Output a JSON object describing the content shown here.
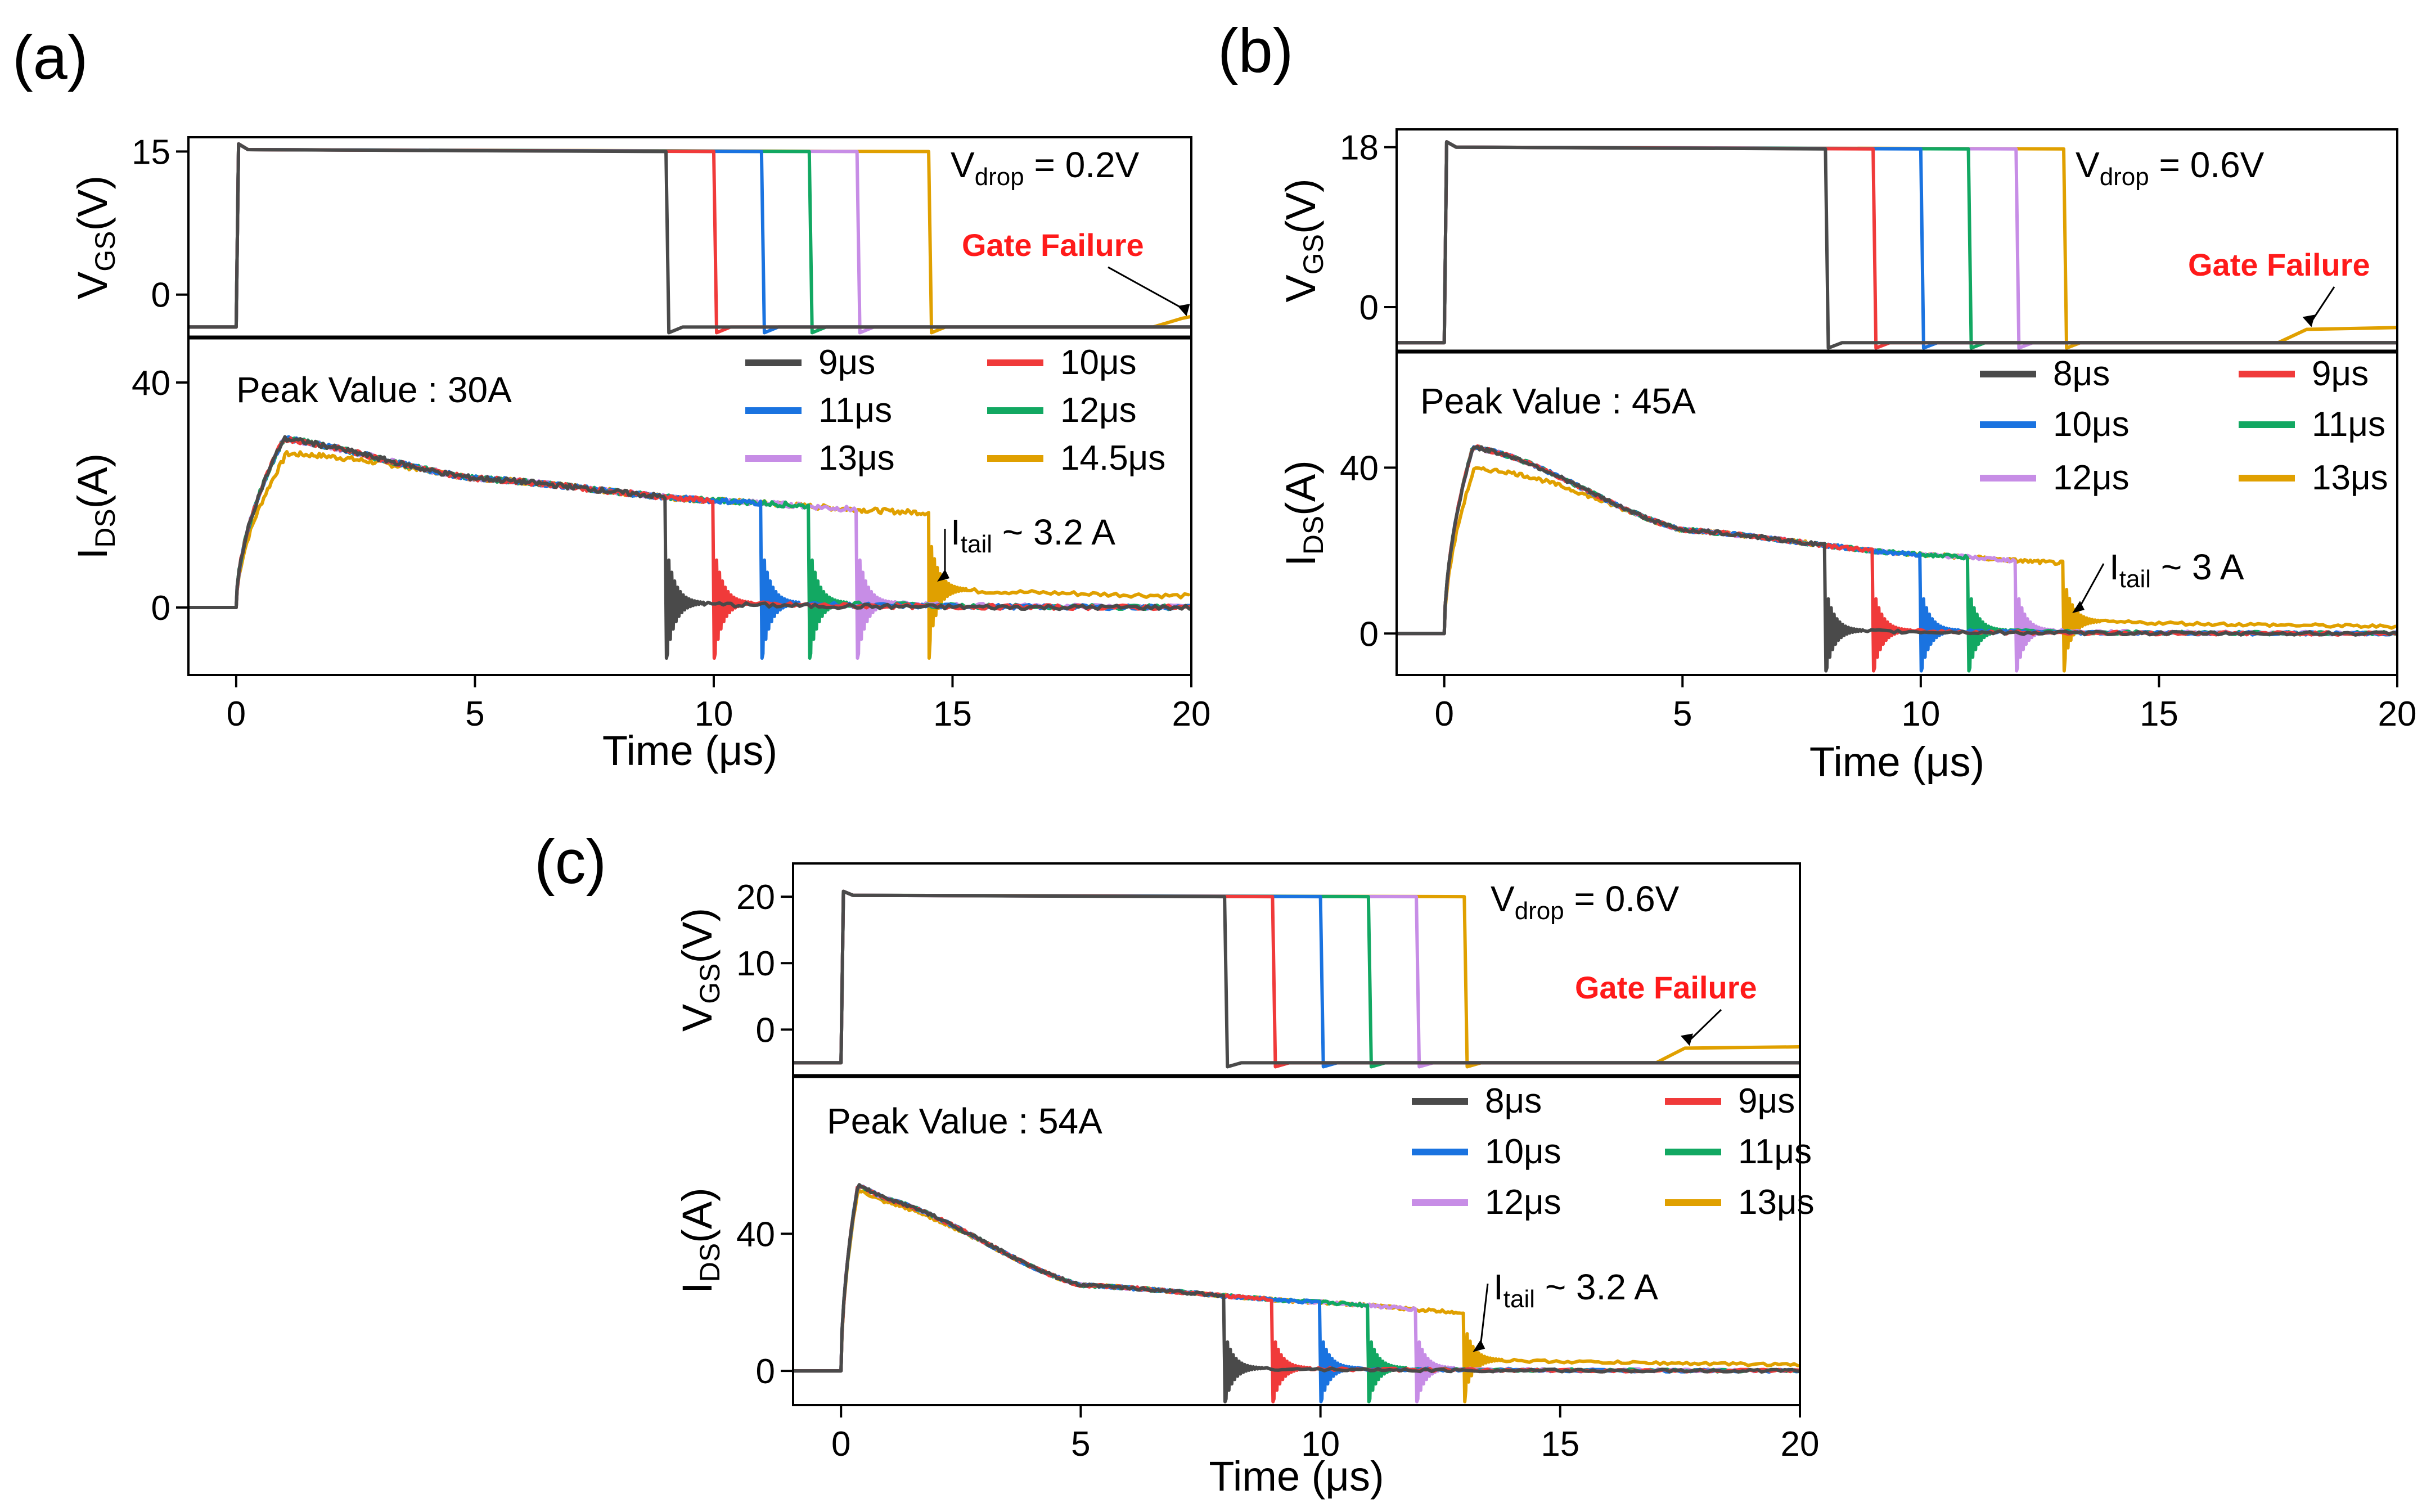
{
  "colors": {
    "9": "#4a4a4a",
    "8": "#4a4a4a",
    "10": "#f03a3a",
    "11": "#1a73e0",
    "12": "#12a862",
    "13": "#c78de6",
    "long": "#e0a000"
  },
  "chart_data": [
    {
      "panel": "(a)",
      "type": "line",
      "xlabel": "Time (μs)",
      "xlim": [
        -1,
        20
      ],
      "xticks": [
        0,
        5,
        10,
        15,
        20
      ],
      "top": {
        "ylabel_main": "V",
        "ylabel_sub": "GS",
        "ylabel_tail": "(V)",
        "yticks": [
          0,
          15
        ],
        "ylim": [
          -4.5,
          16.5
        ],
        "vlow": -3.4,
        "vhigh": 15,
        "annotation_main": "V",
        "annotation_sub": "drop",
        "annotation_tail": " = 0.2V",
        "gate_failure": "Gate Failure",
        "failure_level": -2.5,
        "failure_start": 19.2
      },
      "bottom": {
        "ylabel_main": "I",
        "ylabel_sub": "DS",
        "ylabel_tail": "(A)",
        "yticks": [
          0,
          40
        ],
        "ylim": [
          -12,
          48
        ],
        "peak_text": "Peak Value : 30A",
        "itail_main": "I",
        "itail_sub": "tail",
        "itail_tail": " ~ 3.2 A",
        "itail": 3.2
      },
      "series": [
        {
          "name": "9μs",
          "t_off": 9,
          "color_key": "9"
        },
        {
          "name": "10μs",
          "t_off": 10,
          "color_key": "10"
        },
        {
          "name": "11μs",
          "t_off": 11,
          "color_key": "11"
        },
        {
          "name": "12μs",
          "t_off": 12,
          "color_key": "12"
        },
        {
          "name": "13μs",
          "t_off": 13,
          "color_key": "13"
        },
        {
          "name": "14.5μs",
          "t_off": 14.5,
          "color_key": "long"
        }
      ],
      "current": {
        "peak": 30,
        "t_peak": 1.0,
        "i_at_1us": 30,
        "i_at_5us": 23,
        "i_at_10us": 19,
        "i_at_14us": 17
      }
    },
    {
      "panel": "(b)",
      "type": "line",
      "xlabel": "Time (μs)",
      "xlim": [
        -1,
        20
      ],
      "xticks": [
        0,
        5,
        10,
        15,
        20
      ],
      "top": {
        "ylabel_main": "V",
        "ylabel_sub": "GS",
        "ylabel_tail": "(V)",
        "yticks": [
          0,
          18
        ],
        "ylim": [
          -5,
          20
        ],
        "vlow": -4,
        "vhigh": 17.8,
        "annotation_main": "V",
        "annotation_sub": "drop",
        "annotation_tail": " = 0.6V",
        "gate_failure": "Gate Failure",
        "failure_level": -2.5,
        "failure_start": 17.5
      },
      "bottom": {
        "ylabel_main": "I",
        "ylabel_sub": "DS",
        "ylabel_tail": "(A)",
        "yticks": [
          0,
          40
        ],
        "ylim": [
          -10,
          68
        ],
        "peak_text": "Peak Value : 45A",
        "itail_main": "I",
        "itail_sub": "tail",
        "itail_tail": " ~ 3 A",
        "itail": 3
      },
      "series": [
        {
          "name": "8μs",
          "t_off": 8,
          "color_key": "8"
        },
        {
          "name": "9μs",
          "t_off": 9,
          "color_key": "10"
        },
        {
          "name": "10μs",
          "t_off": 10,
          "color_key": "11"
        },
        {
          "name": "11μs",
          "t_off": 11,
          "color_key": "12"
        },
        {
          "name": "12μs",
          "t_off": 12,
          "color_key": "13"
        },
        {
          "name": "13μs",
          "t_off": 13,
          "color_key": "long"
        }
      ],
      "current": {
        "peak": 45,
        "t_peak": 0.6,
        "i_at_1us": 44,
        "i_at_5us": 25,
        "i_at_10us": 19,
        "i_at_13us": 17
      }
    },
    {
      "panel": "(c)",
      "type": "line",
      "xlabel": "Time (μs)",
      "xlim": [
        -1,
        20
      ],
      "xticks": [
        0,
        5,
        10,
        15,
        20
      ],
      "top": {
        "ylabel_main": "V",
        "ylabel_sub": "GS",
        "ylabel_tail": "(V)",
        "yticks": [
          0,
          10,
          20
        ],
        "ylim": [
          -7,
          25
        ],
        "vlow": -5,
        "vhigh": 20,
        "annotation_main": "V",
        "annotation_sub": "drop",
        "annotation_tail": " = 0.6V",
        "gate_failure": "Gate Failure",
        "failure_level": -2.8,
        "failure_start": 17.0
      },
      "bottom": {
        "ylabel_main": "I",
        "ylabel_sub": "DS",
        "ylabel_tail": "(A)",
        "yticks": [
          0,
          40
        ],
        "ylim": [
          -10,
          86
        ],
        "peak_text": "Peak Value : 54A",
        "itail_main": "I",
        "itail_sub": "tail",
        "itail_tail": " ~ 3.2 A",
        "itail": 3.2
      },
      "series": [
        {
          "name": "8μs",
          "t_off": 8,
          "color_key": "8"
        },
        {
          "name": "9μs",
          "t_off": 9,
          "color_key": "10"
        },
        {
          "name": "10μs",
          "t_off": 10,
          "color_key": "11"
        },
        {
          "name": "11μs",
          "t_off": 11,
          "color_key": "12"
        },
        {
          "name": "12μs",
          "t_off": 12,
          "color_key": "13"
        },
        {
          "name": "13μs",
          "t_off": 13,
          "color_key": "long"
        }
      ],
      "current": {
        "peak": 54,
        "t_peak": 0.35,
        "i_at_1us": 50,
        "i_at_5us": 25,
        "i_at_10us": 20,
        "i_at_13us": 17
      }
    }
  ]
}
